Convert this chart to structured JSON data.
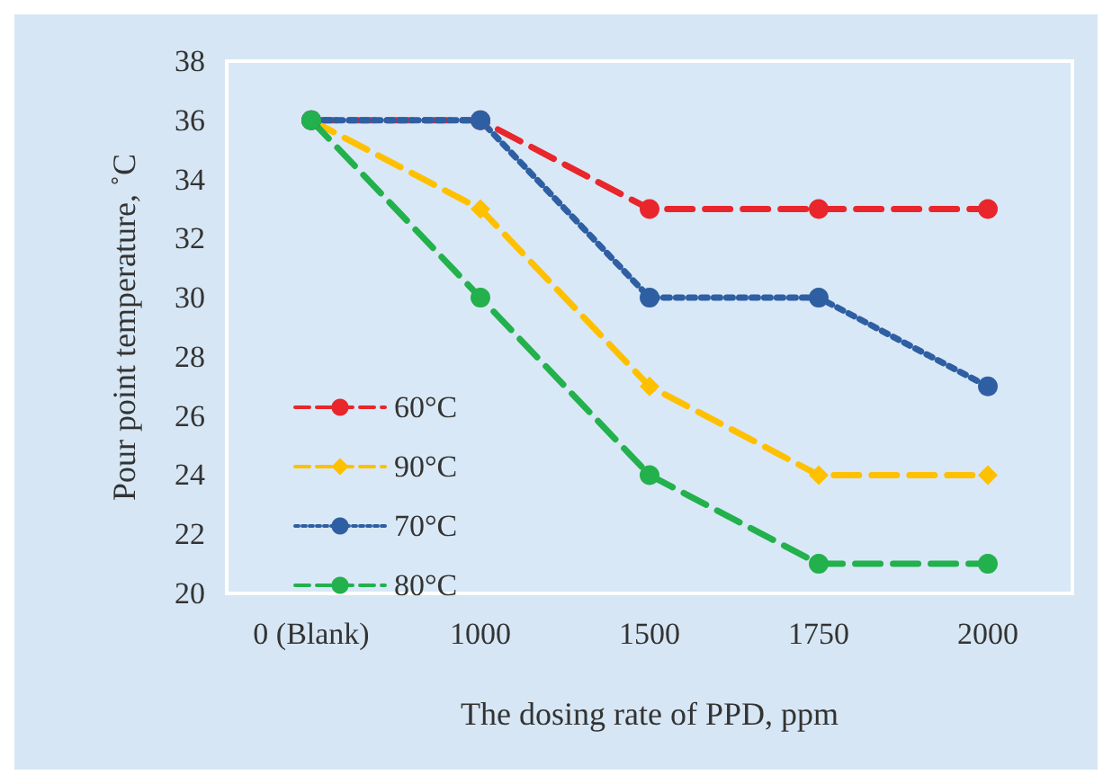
{
  "chart_data": {
    "type": "line",
    "xlabel": "The dosing rate of PPD, ppm",
    "ylabel": "Pour point temperature, ˚C",
    "categories": [
      "0 (Blank)",
      "1000",
      "1500",
      "1750",
      "2000"
    ],
    "ylim": [
      20,
      38
    ],
    "yticks": [
      20,
      22,
      24,
      26,
      28,
      30,
      32,
      34,
      36,
      38
    ],
    "grid": false,
    "legend": "left",
    "series": [
      {
        "name": "60°C",
        "color": "#e8262b",
        "values": [
          36,
          36,
          33,
          33,
          33
        ],
        "line_style": "dashed",
        "marker": "circle"
      },
      {
        "name": "90°C",
        "color": "#ffc000",
        "values": [
          36,
          33,
          27,
          24,
          24
        ],
        "line_style": "dashed",
        "marker": "diamond"
      },
      {
        "name": "70°C",
        "color": "#2e5fa3",
        "values": [
          36,
          36,
          30,
          30,
          27
        ],
        "line_style": "dotted",
        "marker": "circle"
      },
      {
        "name": "80°C",
        "color": "#22b14c",
        "values": [
          36,
          30,
          24,
          21,
          21
        ],
        "line_style": "dashed",
        "marker": "circle"
      }
    ]
  }
}
